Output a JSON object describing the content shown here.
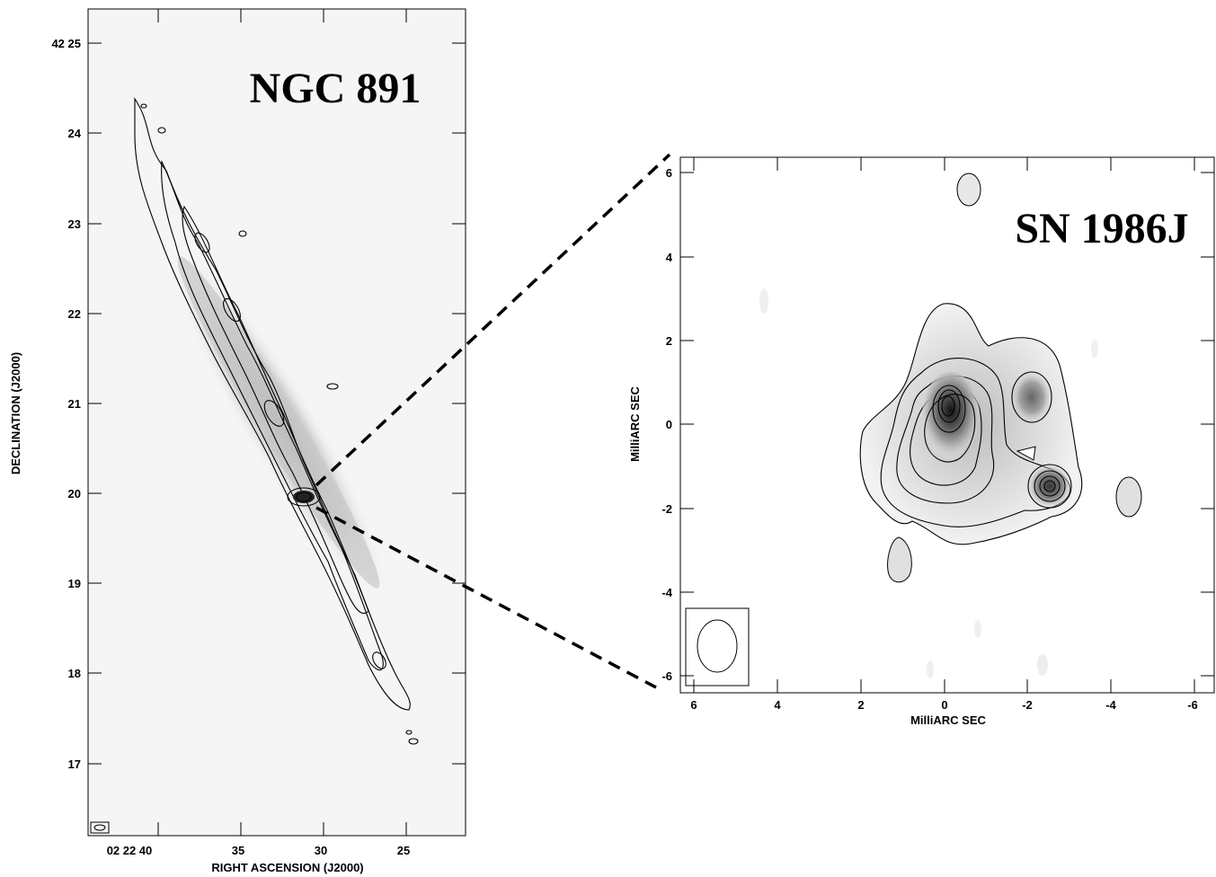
{
  "left_panel": {
    "title": "NGC 891",
    "x_axis": {
      "title": "RIGHT ASCENSION (J2000)",
      "ticks": [
        "02 22 40",
        "35",
        "30",
        "25"
      ]
    },
    "y_axis": {
      "title": "DECLINATION (J2000)",
      "ticks": [
        "42 25",
        "24",
        "23",
        "22",
        "21",
        "20",
        "19",
        "18",
        "17"
      ]
    }
  },
  "right_panel": {
    "title": "SN 1986J",
    "x_axis": {
      "title": "MilliARC SEC",
      "ticks": [
        "6",
        "4",
        "2",
        "0",
        "-2",
        "-4",
        "-6"
      ]
    },
    "y_axis": {
      "title": "MilliARC SEC",
      "ticks": [
        "6",
        "4",
        "2",
        "0",
        "-2",
        "-4",
        "-6"
      ]
    }
  }
}
